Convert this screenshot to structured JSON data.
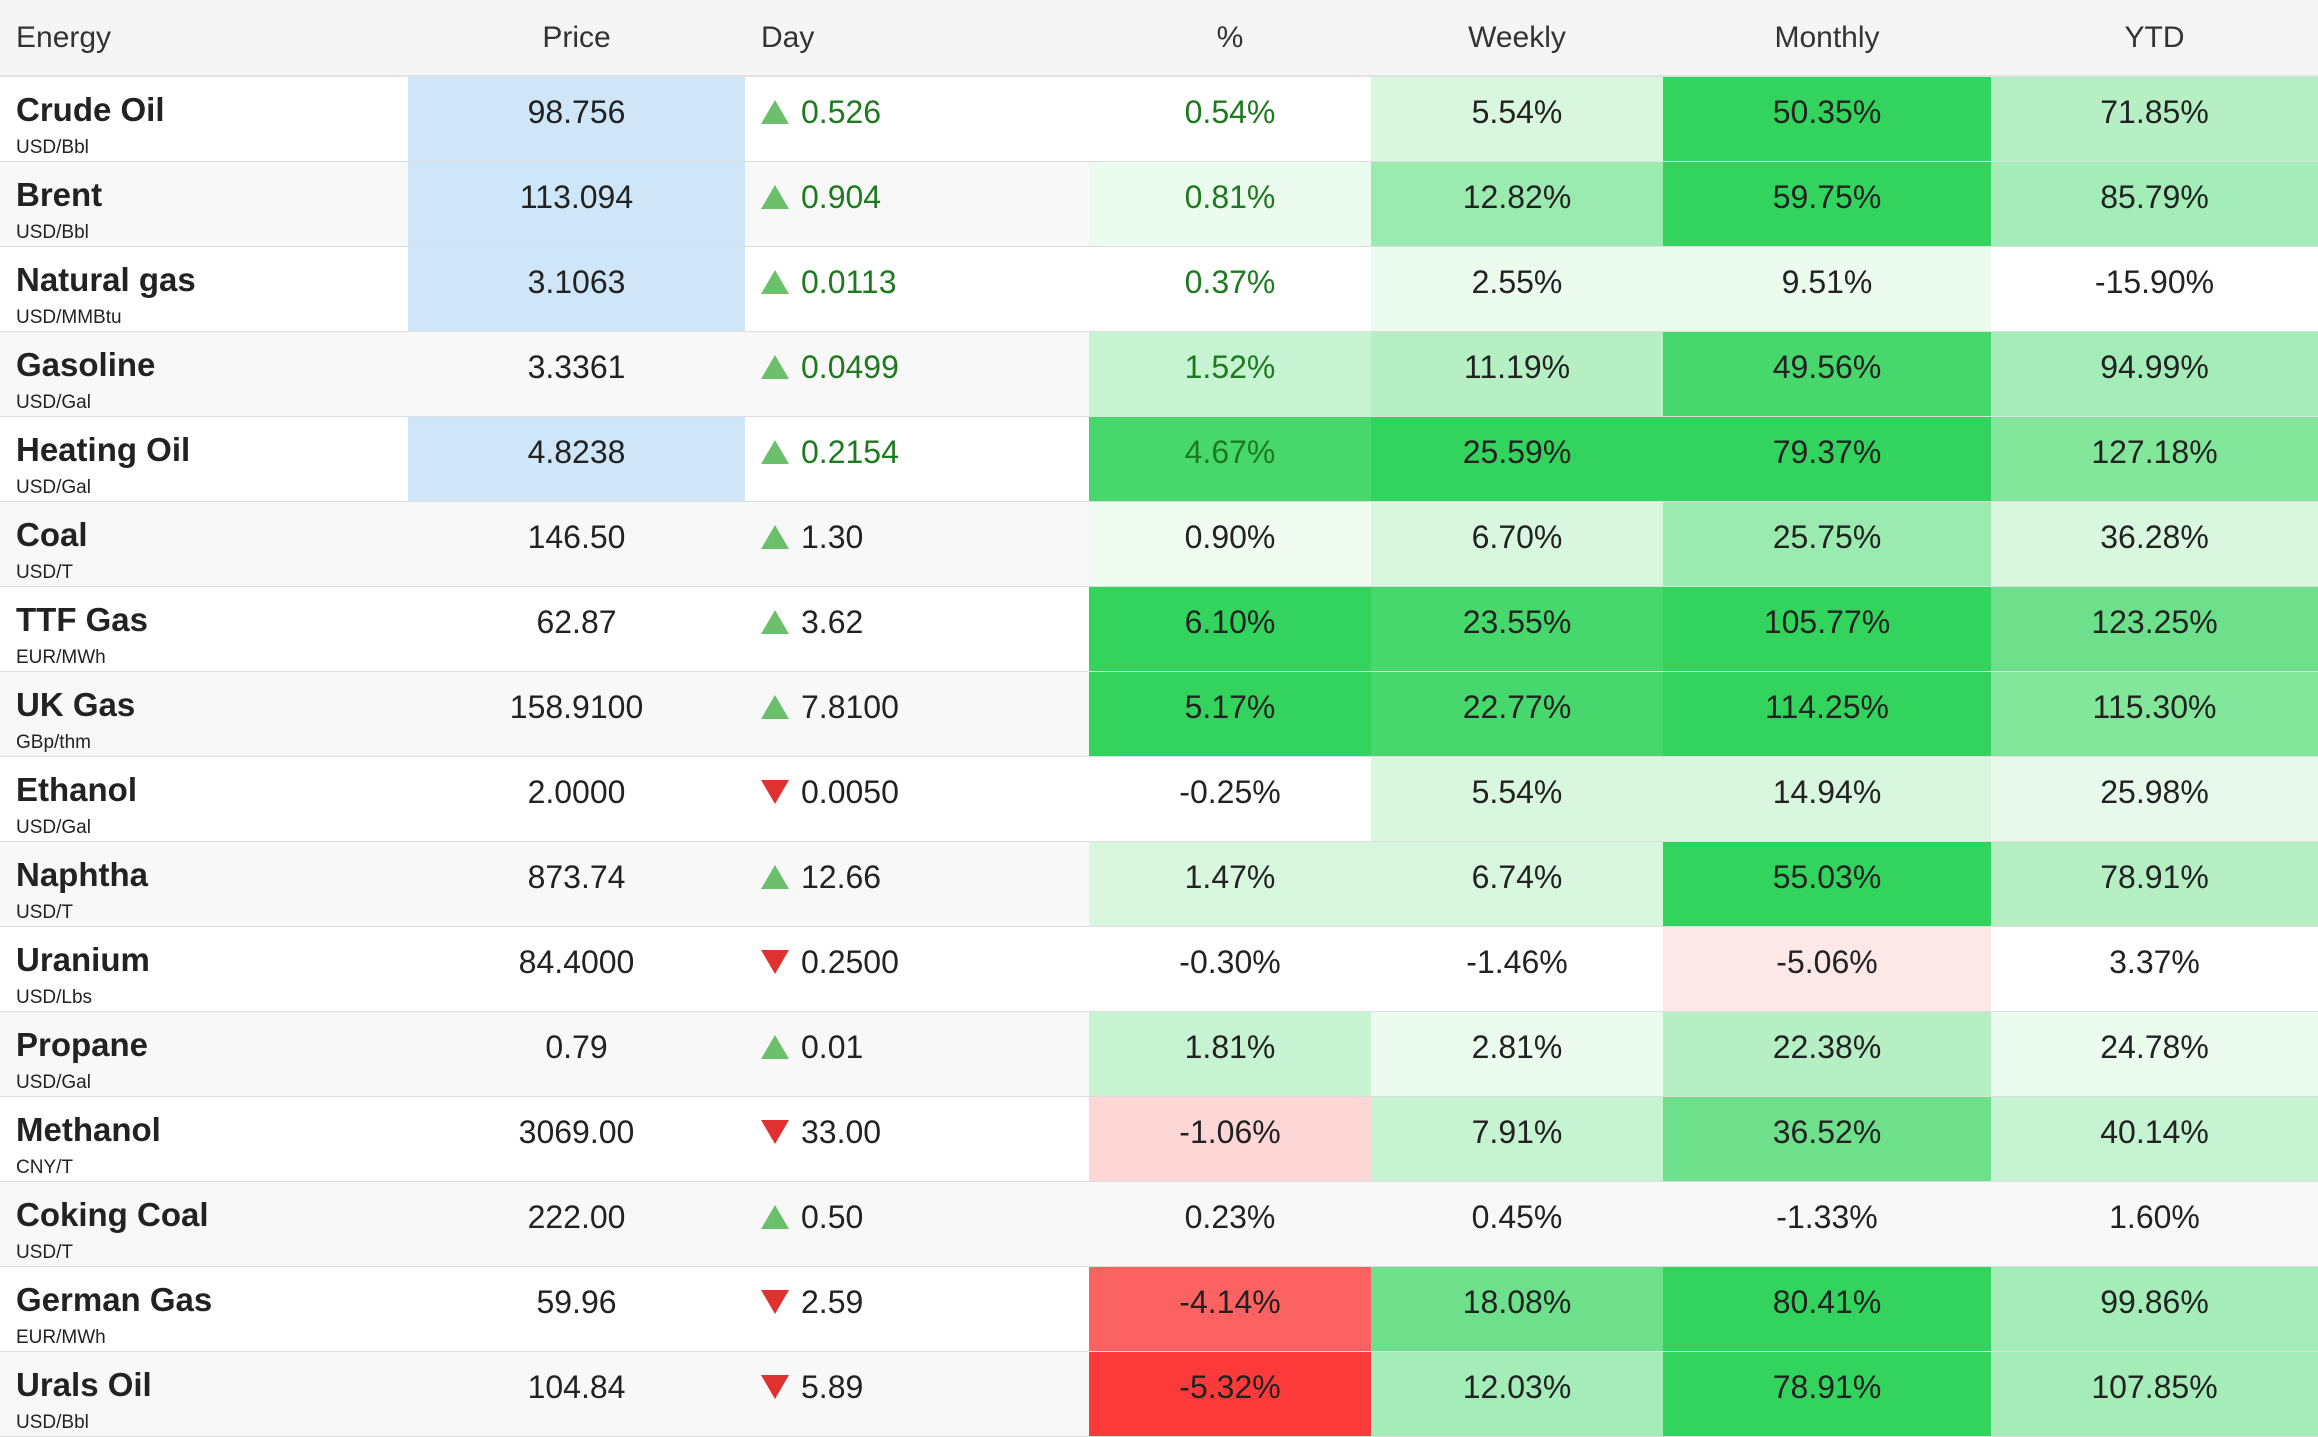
{
  "headers": [
    "Energy",
    "Price",
    "Day",
    "%",
    "Weekly",
    "Monthly",
    "YTD"
  ],
  "colors": {
    "price_highlight": "#cfe6f8",
    "up_arrow": "#6cc06c",
    "down_arrow": "#e03131",
    "positive_text": "#1e7a1e"
  },
  "rows": [
    {
      "name": "Crude Oil",
      "unit": "USD/Bbl",
      "price": "98.756",
      "price_hl": true,
      "dir": "up",
      "day": "0.526",
      "pct": "0.54%",
      "pct_green": true,
      "pct_bg": "#ffffff",
      "weekly": "5.54%",
      "weekly_bg": "#d9f6df",
      "monthly": "50.35%",
      "monthly_bg": "#33d45d",
      "ytd": "71.85%",
      "ytd_bg": "#b6efc4"
    },
    {
      "name": "Brent",
      "unit": "USD/Bbl",
      "price": "113.094",
      "price_hl": true,
      "dir": "up",
      "day": "0.904",
      "pct": "0.81%",
      "pct_green": true,
      "pct_bg": "#ebfbee",
      "weekly": "12.82%",
      "weekly_bg": "#9bebb0",
      "monthly": "59.75%",
      "monthly_bg": "#33d45d",
      "ytd": "85.79%",
      "ytd_bg": "#a4edb8"
    },
    {
      "name": "Natural gas",
      "unit": "USD/MMBtu",
      "price": "3.1063",
      "price_hl": true,
      "dir": "up",
      "day": "0.0113",
      "pct": "0.37%",
      "pct_green": true,
      "pct_bg": "#ffffff",
      "weekly": "2.55%",
      "weekly_bg": "#ebfbee",
      "monthly": "9.51%",
      "monthly_bg": "#ebfbee",
      "ytd": "-15.90%",
      "ytd_bg": "#ffffff"
    },
    {
      "name": "Gasoline",
      "unit": "USD/Gal",
      "price": "3.3361",
      "price_hl": false,
      "dir": "up",
      "day": "0.0499",
      "pct": "1.52%",
      "pct_green": true,
      "pct_bg": "#c6f3d1",
      "weekly": "11.19%",
      "weekly_bg": "#b6efc4",
      "monthly": "49.56%",
      "monthly_bg": "#47d86d",
      "ytd": "94.99%",
      "ytd_bg": "#a4edb8"
    },
    {
      "name": "Heating Oil",
      "unit": "USD/Gal",
      "price": "4.8238",
      "price_hl": true,
      "dir": "up",
      "day": "0.2154",
      "pct": "4.67%",
      "pct_green": true,
      "pct_bg": "#47d86d",
      "weekly": "25.59%",
      "weekly_bg": "#33d45d",
      "monthly": "79.37%",
      "monthly_bg": "#33d45d",
      "ytd": "127.18%",
      "ytd_bg": "#82e69b"
    },
    {
      "name": "Coal",
      "unit": "USD/T",
      "price": "146.50",
      "price_hl": false,
      "dir": "up",
      "day": "1.30",
      "pct": "0.90%",
      "pct_green": false,
      "pct_bg": "#f0fbf2",
      "weekly": "6.70%",
      "weekly_bg": "#d9f6df",
      "monthly": "25.75%",
      "monthly_bg": "#9bebb0",
      "ytd": "36.28%",
      "ytd_bg": "#d9f6df"
    },
    {
      "name": "TTF Gas",
      "unit": "EUR/MWh",
      "price": "62.87",
      "price_hl": false,
      "dir": "up",
      "day": "3.62",
      "pct": "6.10%",
      "pct_green": false,
      "pct_bg": "#33d45d",
      "weekly": "23.55%",
      "weekly_bg": "#47d86d",
      "monthly": "105.77%",
      "monthly_bg": "#33d45d",
      "ytd": "123.25%",
      "ytd_bg": "#6ee08b"
    },
    {
      "name": "UK Gas",
      "unit": "GBp/thm",
      "price": "158.9100",
      "price_hl": false,
      "dir": "up",
      "day": "7.8100",
      "pct": "5.17%",
      "pct_green": false,
      "pct_bg": "#33d45d",
      "weekly": "22.77%",
      "weekly_bg": "#47d86d",
      "monthly": "114.25%",
      "monthly_bg": "#33d45d",
      "ytd": "115.30%",
      "ytd_bg": "#82e69b"
    },
    {
      "name": "Ethanol",
      "unit": "USD/Gal",
      "price": "2.0000",
      "price_hl": false,
      "dir": "down",
      "day": "0.0050",
      "pct": "-0.25%",
      "pct_green": false,
      "pct_bg": "#ffffff",
      "weekly": "5.54%",
      "weekly_bg": "#d9f6df",
      "monthly": "14.94%",
      "monthly_bg": "#d9f6df",
      "ytd": "25.98%",
      "ytd_bg": "#e6f9ea"
    },
    {
      "name": "Naphtha",
      "unit": "USD/T",
      "price": "873.74",
      "price_hl": false,
      "dir": "up",
      "day": "12.66",
      "pct": "1.47%",
      "pct_green": false,
      "pct_bg": "#d9f6df",
      "weekly": "6.74%",
      "weekly_bg": "#d9f6df",
      "monthly": "55.03%",
      "monthly_bg": "#33d45d",
      "ytd": "78.91%",
      "ytd_bg": "#b6efc4"
    },
    {
      "name": "Uranium",
      "unit": "USD/Lbs",
      "price": "84.4000",
      "price_hl": false,
      "dir": "down",
      "day": "0.2500",
      "pct": "-0.30%",
      "pct_green": false,
      "pct_bg": "#ffffff",
      "weekly": "-1.46%",
      "weekly_bg": "#ffffff",
      "monthly": "-5.06%",
      "monthly_bg": "#fde8e8",
      "ytd": "3.37%",
      "ytd_bg": "#ffffff"
    },
    {
      "name": "Propane",
      "unit": "USD/Gal",
      "price": "0.79",
      "price_hl": false,
      "dir": "up",
      "day": "0.01",
      "pct": "1.81%",
      "pct_green": false,
      "pct_bg": "#c6f3d1",
      "weekly": "2.81%",
      "weekly_bg": "#ebfbee",
      "monthly": "22.38%",
      "monthly_bg": "#b6efc4",
      "ytd": "24.78%",
      "ytd_bg": "#ebfbee"
    },
    {
      "name": "Methanol",
      "unit": "CNY/T",
      "price": "3069.00",
      "price_hl": false,
      "dir": "down",
      "day": "33.00",
      "pct": "-1.06%",
      "pct_green": false,
      "pct_bg": "#fdd6d6",
      "weekly": "7.91%",
      "weekly_bg": "#c6f3d1",
      "monthly": "36.52%",
      "monthly_bg": "#6ee08b",
      "ytd": "40.14%",
      "ytd_bg": "#c6f3d1"
    },
    {
      "name": "Coking Coal",
      "unit": "USD/T",
      "price": "222.00",
      "price_hl": false,
      "dir": "up",
      "day": "0.50",
      "pct": "0.23%",
      "pct_green": false,
      "pct_bg": "#ffffff",
      "weekly": "0.45%",
      "weekly_bg": "#ffffff",
      "monthly": "-1.33%",
      "monthly_bg": "#ffffff",
      "ytd": "1.60%",
      "ytd_bg": "#ffffff"
    },
    {
      "name": "German Gas",
      "unit": "EUR/MWh",
      "price": "59.96",
      "price_hl": false,
      "dir": "down",
      "day": "2.59",
      "pct": "-4.14%",
      "pct_green": false,
      "pct_bg": "#fd6262",
      "weekly": "18.08%",
      "weekly_bg": "#6ee08b",
      "monthly": "80.41%",
      "monthly_bg": "#33d45d",
      "ytd": "99.86%",
      "ytd_bg": "#a4edb8"
    },
    {
      "name": "Urals Oil",
      "unit": "USD/Bbl",
      "price": "104.84",
      "price_hl": false,
      "dir": "down",
      "day": "5.89",
      "pct": "-5.32%",
      "pct_green": false,
      "pct_bg": "#fd3a3a",
      "weekly": "12.03%",
      "weekly_bg": "#a4edb8",
      "monthly": "78.91%",
      "monthly_bg": "#33d45d",
      "ytd": "107.85%",
      "ytd_bg": "#a4edb8"
    }
  ]
}
